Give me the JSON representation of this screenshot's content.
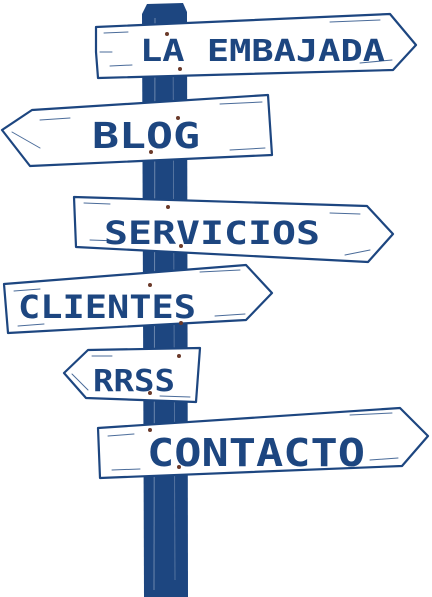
{
  "colors": {
    "post": "#1d4680",
    "ink": "#1d4680",
    "board": "#ffffff",
    "nail": "#6b3a2a"
  },
  "signs": [
    {
      "id": "la-embajada",
      "label": "LA EMBAJADA",
      "direction": "right"
    },
    {
      "id": "blog",
      "label": "BLOG",
      "direction": "left"
    },
    {
      "id": "servicios",
      "label": "SERVICIOS",
      "direction": "right"
    },
    {
      "id": "clientes",
      "label": "CLIENTES",
      "direction": "right"
    },
    {
      "id": "rrss",
      "label": "RRSS",
      "direction": "left"
    },
    {
      "id": "contacto",
      "label": "CONTACTO",
      "direction": "right"
    }
  ]
}
